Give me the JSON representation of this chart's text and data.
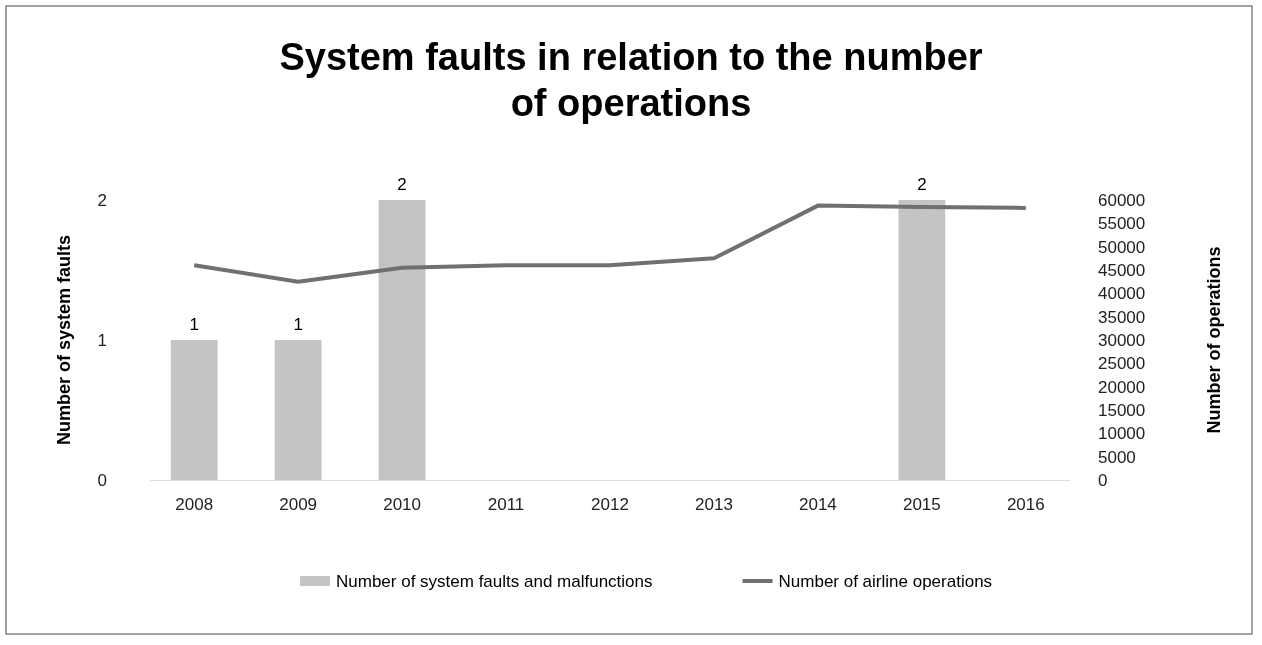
{
  "chart_data": {
    "type": "bar",
    "title": "System faults in relation to the number of operations",
    "ylabel": "Number of system faults",
    "y2label": "Number of operations",
    "categories": [
      "2008",
      "2009",
      "2010",
      "2011",
      "2012",
      "2013",
      "2014",
      "2015",
      "2016"
    ],
    "series": [
      {
        "name": "Number of system faults and malfunctions",
        "color": "#c4c4c4",
        "values": [
          1,
          1,
          2,
          null,
          null,
          null,
          null,
          2,
          null
        ],
        "value_labels": [
          "1",
          "1",
          "2",
          null,
          null,
          null,
          null,
          "2",
          null
        ]
      },
      {
        "name": "Number of airline operations",
        "type": "line",
        "axis": "y2",
        "color": "#707070",
        "values": [
          46000,
          42500,
          45500,
          46000,
          46000,
          47500,
          58800,
          58500,
          58300
        ]
      }
    ],
    "ylim": [
      0,
      2
    ],
    "yticks": [
      0,
      1,
      2
    ],
    "y2lim": [
      0,
      60000
    ],
    "y2ticks": [
      0,
      5000,
      10000,
      15000,
      20000,
      25000,
      30000,
      35000,
      40000,
      45000,
      50000,
      55000,
      60000
    ],
    "legend": "bottom",
    "grid": false,
    "marker": "none",
    "line_style": "solid"
  }
}
